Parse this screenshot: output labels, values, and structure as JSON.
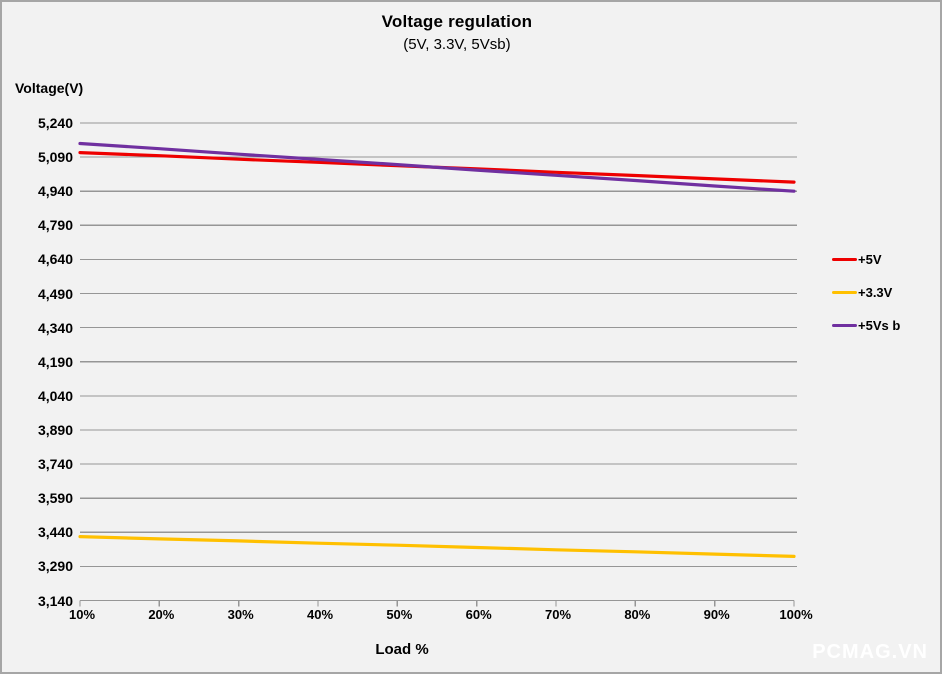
{
  "watermark": "PCMAG.VN",
  "chart_data": {
    "type": "line",
    "title": "Voltage regulation",
    "subtitle": "(5V, 3.3V, 5Vsb)",
    "xlabel": "Load %",
    "ylabel": "Voltage(V)",
    "categories": [
      "10%",
      "20%",
      "30%",
      "40%",
      "50%",
      "60%",
      "70%",
      "80%",
      "90%",
      "100%"
    ],
    "ylim": [
      3140,
      5240
    ],
    "ytick_step": 150,
    "ytick_labels": [
      "5,240",
      "5,090",
      "4,940",
      "4,790",
      "4,640",
      "4,490",
      "4,340",
      "4,190",
      "4,040",
      "3,890",
      "3,740",
      "3,590",
      "3,440",
      "3,290",
      "3,140"
    ],
    "grid": true,
    "legend_position": "right",
    "colors": {
      "background": "#f2f2f2",
      "border": "#a6a6a6",
      "grid": "#969696",
      "axis": "#969696",
      "text": "#000000",
      "watermark": "#ffffff"
    },
    "series": [
      {
        "name": "+5V",
        "color": "#ee0000",
        "values": [
          5110,
          5096,
          5081,
          5067,
          5052,
          5038,
          5023,
          5009,
          4994,
          4980
        ]
      },
      {
        "name": "+3.3V",
        "color": "#ffc000",
        "values": [
          3421,
          3411,
          3402,
          3392,
          3383,
          3373,
          3363,
          3354,
          3344,
          3334
        ]
      },
      {
        "name": "+5Vs b",
        "color": "#7030a0",
        "values": [
          5150,
          5127,
          5103,
          5080,
          5057,
          5033,
          5010,
          4987,
          4963,
          4940
        ]
      }
    ]
  }
}
